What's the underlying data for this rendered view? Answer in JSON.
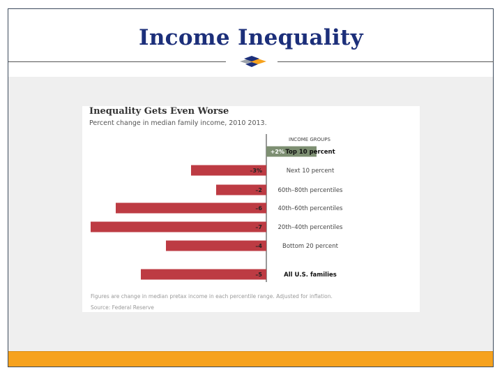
{
  "slide": {
    "title": "Income Inequality",
    "colors": {
      "title": "#1c2f7a",
      "accent_bar": "#f6a21e",
      "band": "#efefef",
      "frame": "#3c4a5c"
    }
  },
  "chart_data": {
    "type": "bar",
    "orientation": "horizontal",
    "title": "Inequality Gets Even Worse",
    "subtitle": "Percent change in median family income, 2010 2013.",
    "legend_title": "INCOME GROUPS",
    "categories": [
      "Top 10 percent",
      "Next 10 percent",
      "60th–80th percentiles",
      "40th–60th percentiles",
      "20th–40th percentiles",
      "Bottom 20 percent",
      "All U.S. families"
    ],
    "values": [
      2,
      -3,
      -2,
      -6,
      -7,
      -4,
      -5
    ],
    "value_labels": [
      "+2%",
      "–3%",
      "–2",
      "–6",
      "–7",
      "–4",
      "–5"
    ],
    "bold_categories": [
      "Top 10 percent",
      "All U.S. families"
    ],
    "colors": {
      "positive": "#7d8f72",
      "negative": "#bd3b43"
    },
    "xlim": [
      -7,
      2
    ],
    "grid": false,
    "footnote": "Figures are change in median pretax income in each percentile range. Adjusted for inflation.",
    "source": "Source: Federal Reserve"
  }
}
